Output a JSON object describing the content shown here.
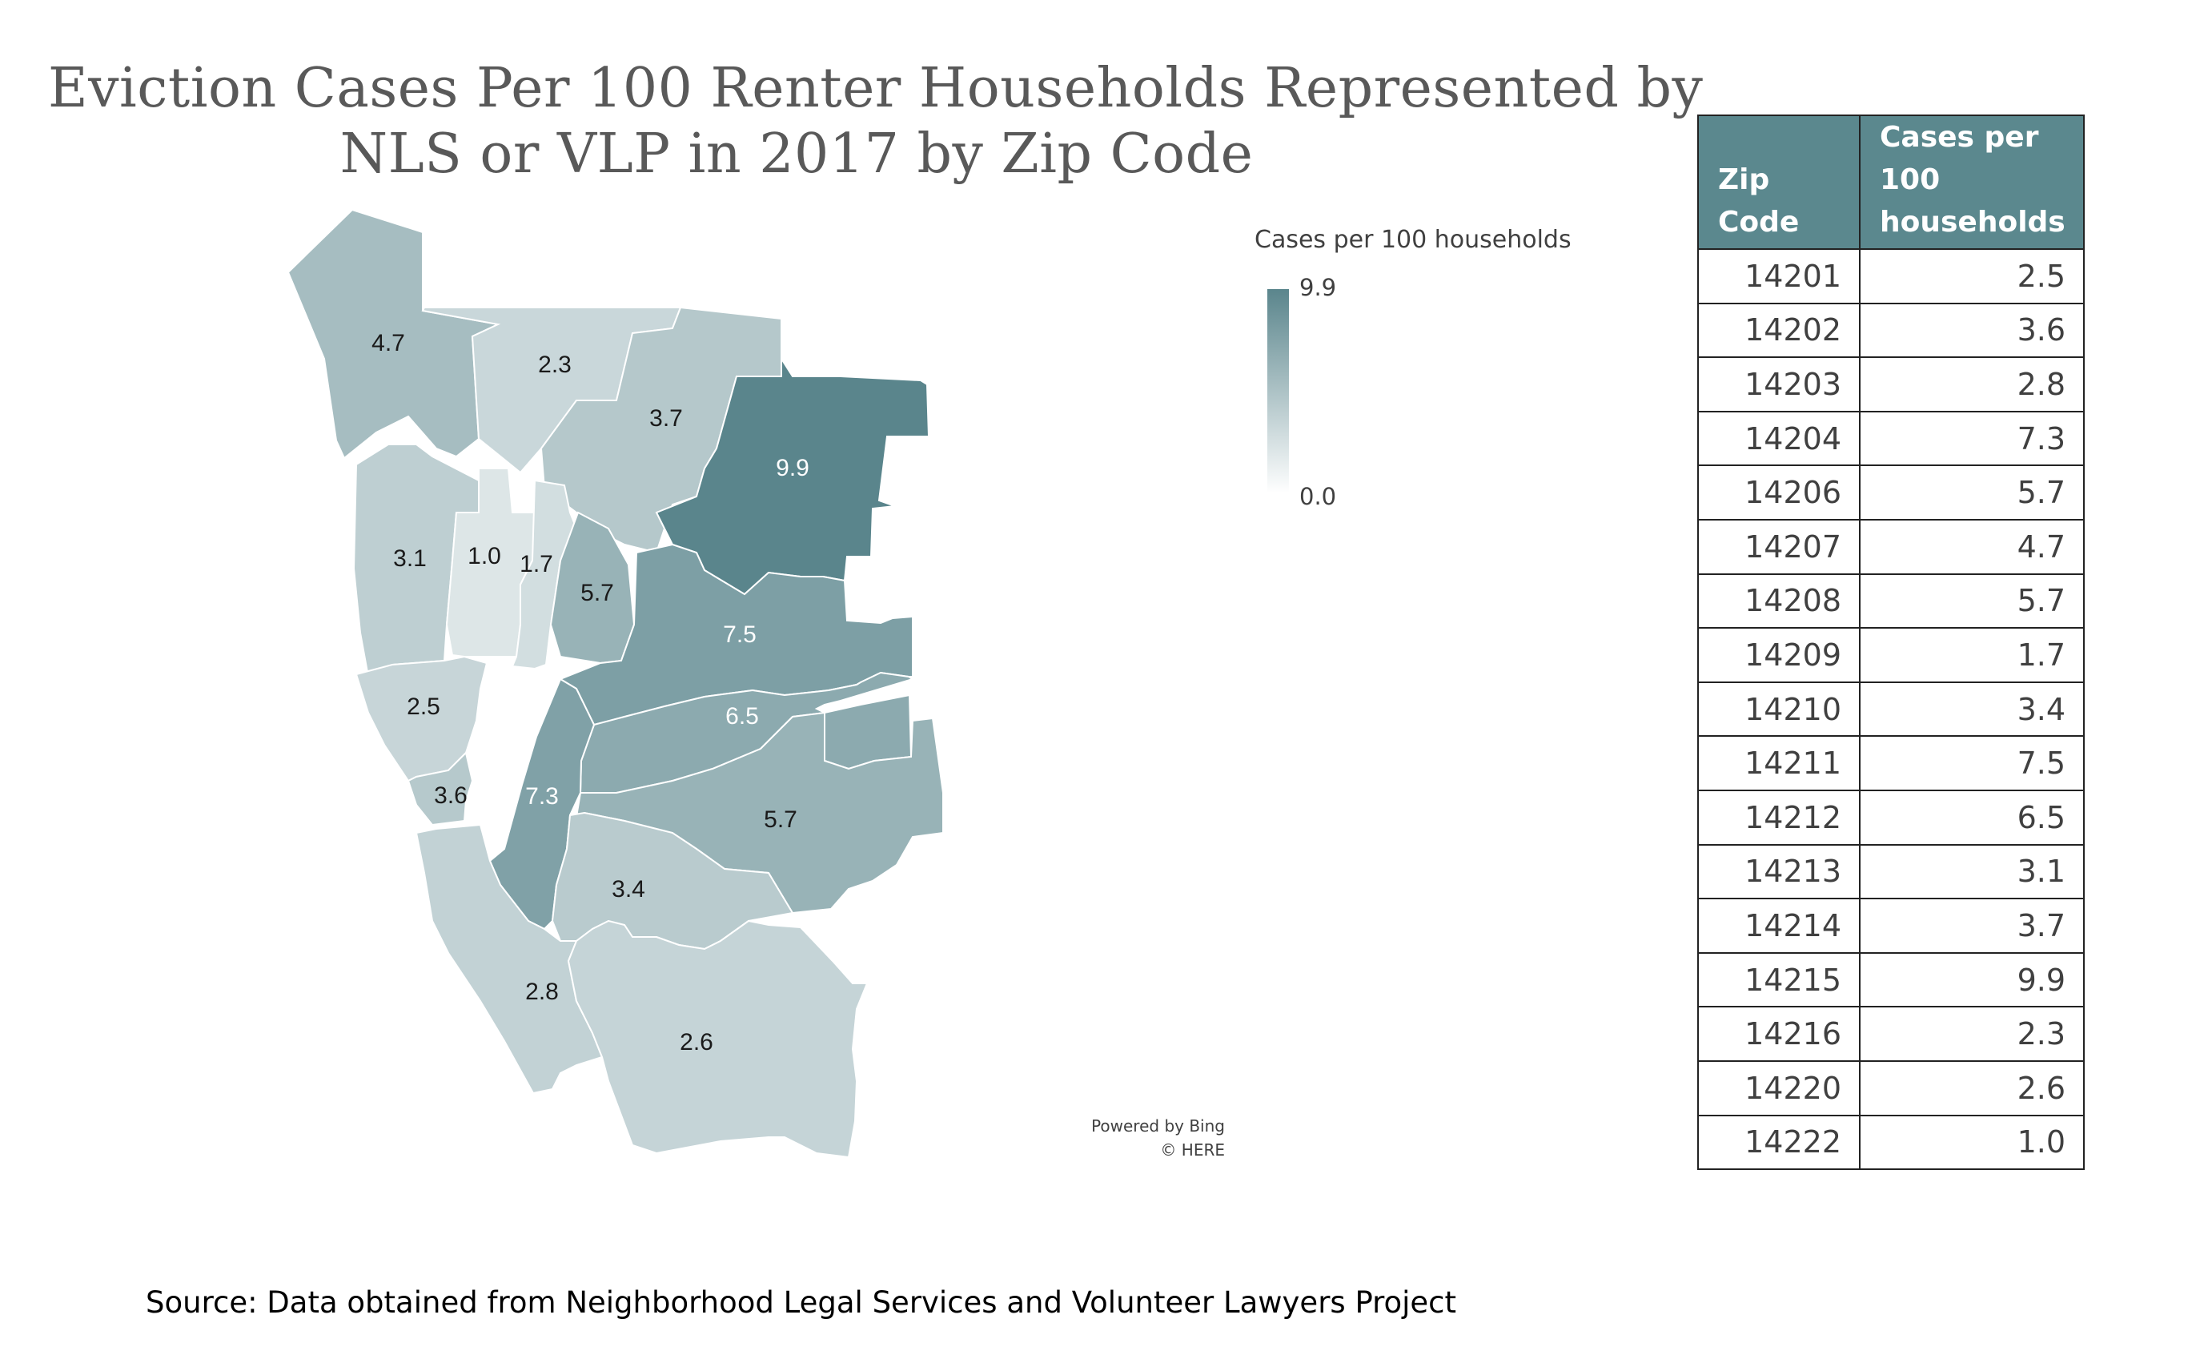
{
  "title": {
    "line1": "Eviction Cases Per 100 Renter Households Represented by",
    "line2": "NLS or VLP in 2017 by Zip Code"
  },
  "legend": {
    "title": "Cases per 100 households",
    "max_label": "9.9",
    "min_label": "0.0",
    "color_max": "#5a858c",
    "color_min": "#ffffff"
  },
  "credits": {
    "line1": "Powered by Bing",
    "line2": "© HERE"
  },
  "source": "Source: Data obtained from Neighborhood Legal Services and Volunteer Lawyers Project",
  "table": {
    "headers": {
      "zip": "Zip Code",
      "cases_l1": "Cases per",
      "cases_l2": "100",
      "cases_l3": "households"
    },
    "rows": [
      {
        "zip": "14201",
        "cases": "2.5"
      },
      {
        "zip": "14202",
        "cases": "3.6"
      },
      {
        "zip": "14203",
        "cases": "2.8"
      },
      {
        "zip": "14204",
        "cases": "7.3"
      },
      {
        "zip": "14206",
        "cases": "5.7"
      },
      {
        "zip": "14207",
        "cases": "4.7"
      },
      {
        "zip": "14208",
        "cases": "5.7"
      },
      {
        "zip": "14209",
        "cases": "1.7"
      },
      {
        "zip": "14210",
        "cases": "3.4"
      },
      {
        "zip": "14211",
        "cases": "7.5"
      },
      {
        "zip": "14212",
        "cases": "6.5"
      },
      {
        "zip": "14213",
        "cases": "3.1"
      },
      {
        "zip": "14214",
        "cases": "3.7"
      },
      {
        "zip": "14215",
        "cases": "9.9"
      },
      {
        "zip": "14216",
        "cases": "2.3"
      },
      {
        "zip": "14220",
        "cases": "2.6"
      },
      {
        "zip": "14222",
        "cases": "1.0"
      }
    ]
  },
  "map": {
    "regions": [
      {
        "zip": "14207",
        "value": 4.7,
        "label": "4.7"
      },
      {
        "zip": "14216",
        "value": 2.3,
        "label": "2.3"
      },
      {
        "zip": "14214",
        "value": 3.7,
        "label": "3.7"
      },
      {
        "zip": "14215",
        "value": 9.9,
        "label": "9.9"
      },
      {
        "zip": "14213",
        "value": 3.1,
        "label": "3.1"
      },
      {
        "zip": "14222",
        "value": 1.0,
        "label": "1.0"
      },
      {
        "zip": "14209",
        "value": 1.7,
        "label": "1.7"
      },
      {
        "zip": "14208",
        "value": 5.7,
        "label": "5.7"
      },
      {
        "zip": "14211",
        "value": 7.5,
        "label": "7.5"
      },
      {
        "zip": "14201",
        "value": 2.5,
        "label": "2.5"
      },
      {
        "zip": "14212",
        "value": 6.5,
        "label": "6.5"
      },
      {
        "zip": "14202",
        "value": 3.6,
        "label": "3.6"
      },
      {
        "zip": "14204",
        "value": 7.3,
        "label": "7.3"
      },
      {
        "zip": "14206",
        "value": 5.7,
        "label": "5.7"
      },
      {
        "zip": "14210",
        "value": 3.4,
        "label": "3.4"
      },
      {
        "zip": "14203",
        "value": 2.8,
        "label": "2.8"
      },
      {
        "zip": "14220",
        "value": 2.6,
        "label": "2.6"
      }
    ]
  }
}
